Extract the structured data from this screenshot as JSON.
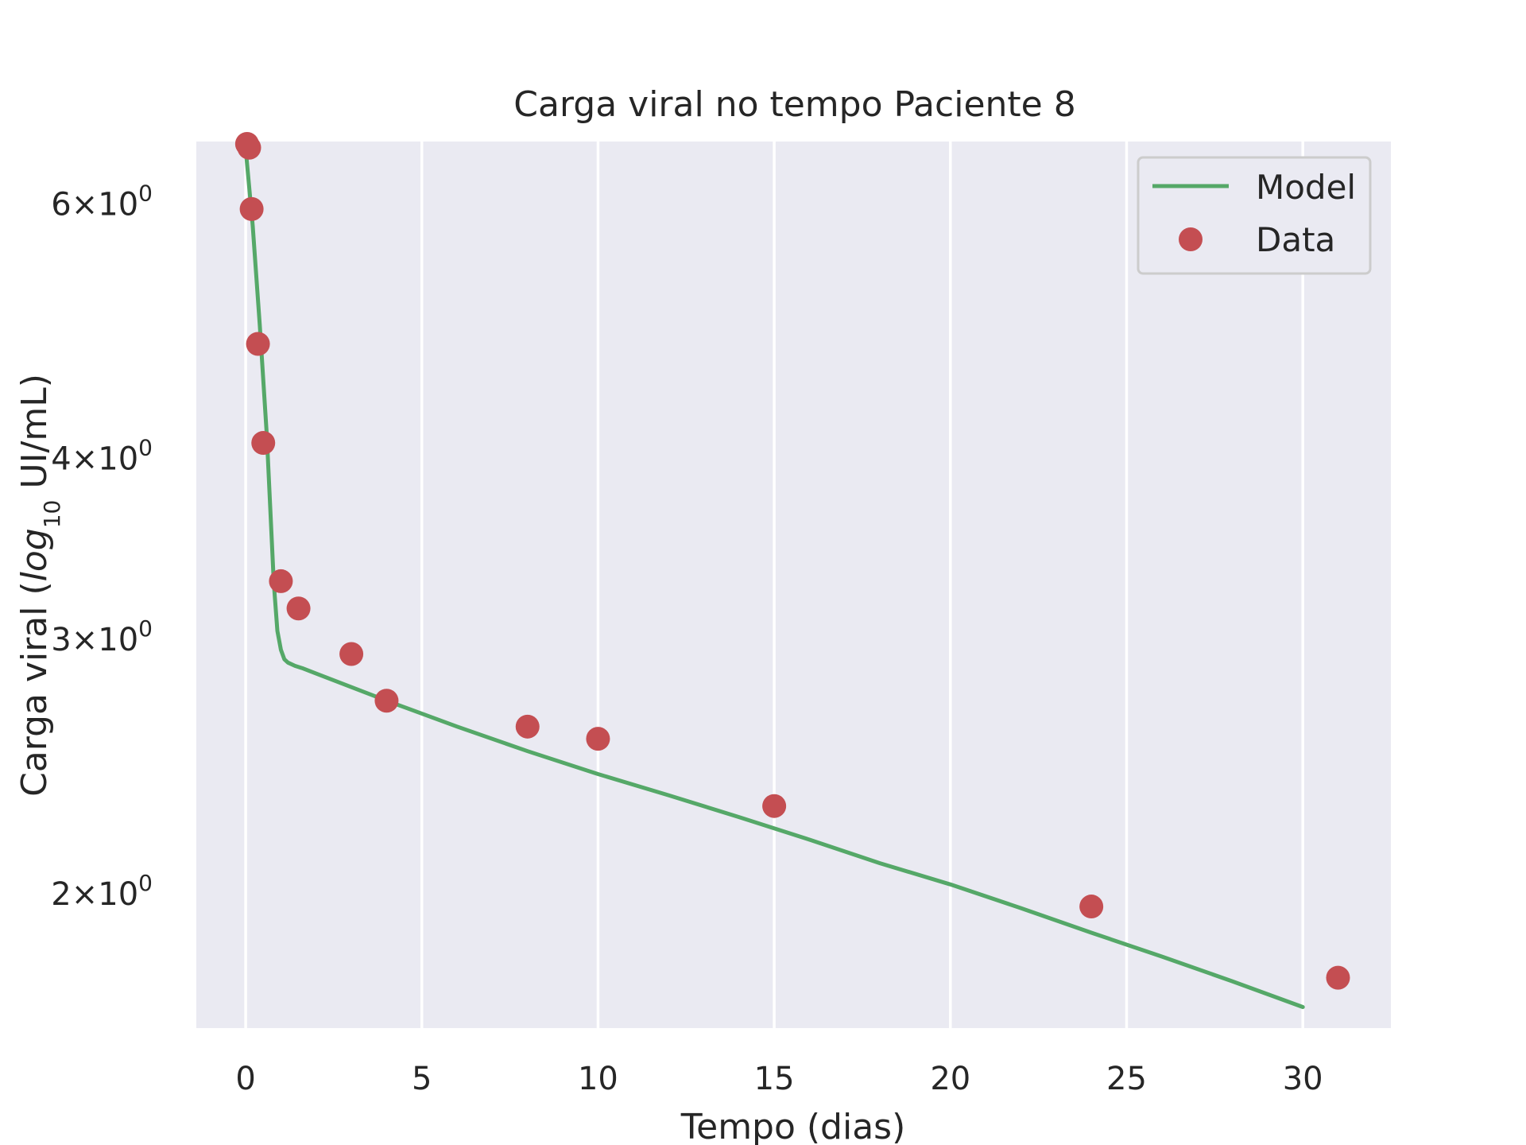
{
  "chart_data": {
    "type": "line",
    "title": "Carga viral no tempo Paciente 8",
    "xlabel": "Tempo (dias)",
    "ylabel_prefix": "Carga viral (",
    "ylabel_log": "log",
    "ylabel_sub": "10",
    "ylabel_suffix": " UI/mL)",
    "y_scale": "log",
    "grid": "x-only",
    "legend_position": "top-right",
    "xlim": [
      -1.4,
      32.5
    ],
    "ylim": [
      1.615,
      6.625
    ],
    "x_ticks": [
      0,
      5,
      10,
      15,
      20,
      25,
      30
    ],
    "x_tick_labels": [
      "0",
      "5",
      "10",
      "15",
      "20",
      "25",
      "30"
    ],
    "y_ticks": [
      {
        "value": 2,
        "base": "2×10",
        "exp": "0"
      },
      {
        "value": 3,
        "base": "3×10",
        "exp": "0"
      },
      {
        "value": 4,
        "base": "4×10",
        "exp": "0"
      },
      {
        "value": 6,
        "base": "6×10",
        "exp": "0"
      }
    ],
    "series": [
      {
        "name": "Model",
        "kind": "line",
        "color": "#55a868",
        "x": [
          0,
          0.2,
          0.4,
          0.6,
          0.8,
          0.9,
          1.0,
          1.1,
          1.2,
          1.4,
          1.6,
          2,
          4,
          6,
          8,
          10,
          12,
          14,
          16,
          18,
          20,
          22,
          24,
          26,
          28,
          30
        ],
        "y": [
          6.55,
          5.8,
          4.95,
          4.15,
          3.28,
          3.04,
          2.95,
          2.905,
          2.89,
          2.875,
          2.865,
          2.84,
          2.72,
          2.61,
          2.51,
          2.42,
          2.34,
          2.26,
          2.18,
          2.1,
          2.03,
          1.955,
          1.88,
          1.81,
          1.74,
          1.67
        ]
      },
      {
        "name": "Data",
        "kind": "scatter",
        "color": "#c44e52",
        "x": [
          0.04,
          0.1,
          0.17,
          0.35,
          0.5,
          1.0,
          1.5,
          3.0,
          4.0,
          8.0,
          10.0,
          15.0,
          24.0,
          31.0
        ],
        "y": [
          6.6,
          6.56,
          5.95,
          4.8,
          4.1,
          3.29,
          3.15,
          2.93,
          2.72,
          2.61,
          2.56,
          2.3,
          1.96,
          1.75
        ]
      }
    ]
  },
  "colors": {
    "plot_background": "#eaeaf2",
    "grid": "#ffffff",
    "text": "#262626"
  }
}
